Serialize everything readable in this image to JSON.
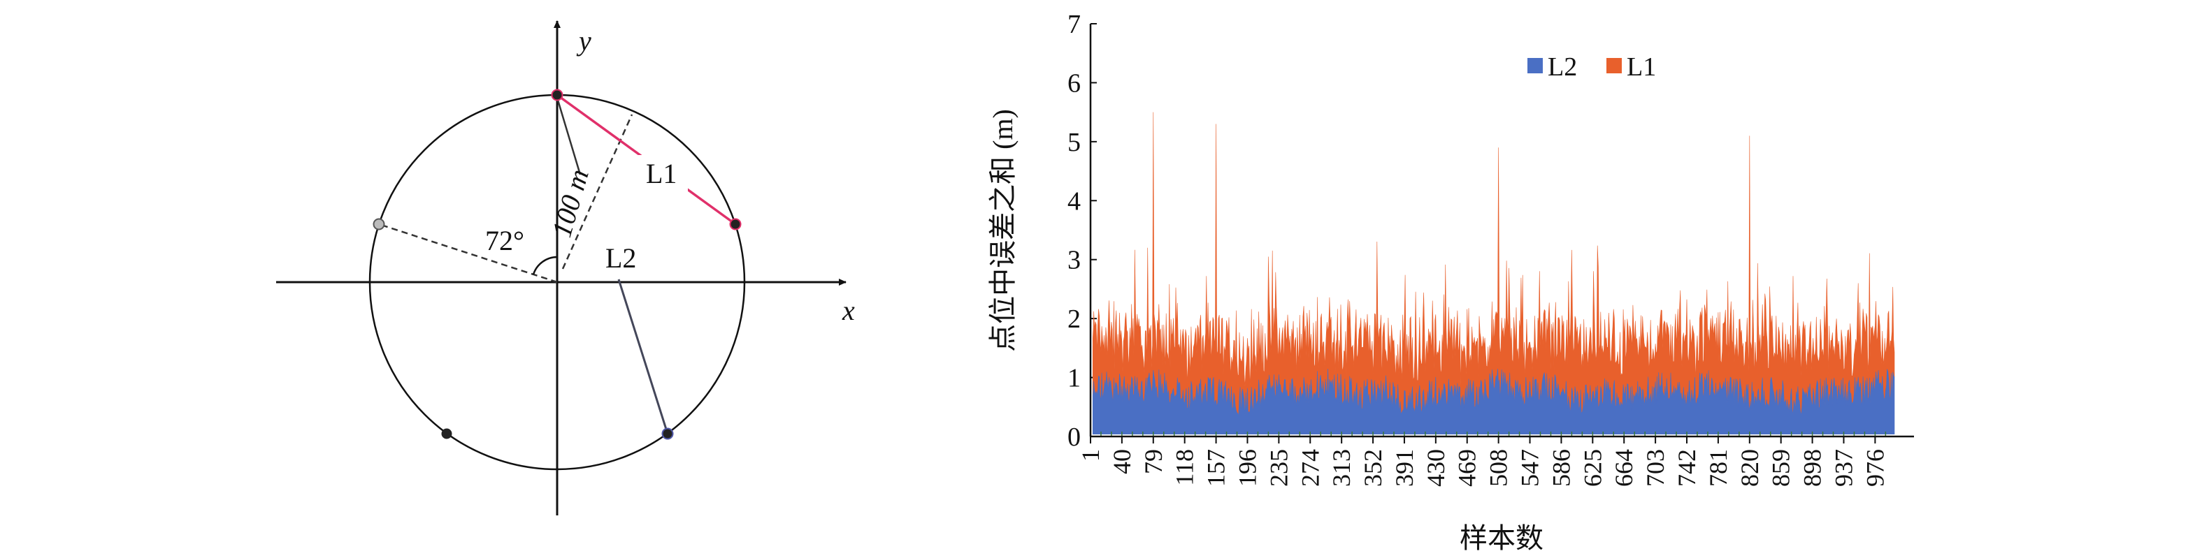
{
  "diagram": {
    "x_axis_label": "x",
    "y_axis_label": "y",
    "line1_label": "L1",
    "line2_label": "L2",
    "angle_label": "72°",
    "radius_label": "100 m",
    "colors": {
      "line1": "#e0306a",
      "line2": "#44475a",
      "point": "#222222",
      "dashed": "#333333"
    }
  },
  "chart_data": {
    "type": "area",
    "stacked": true,
    "x_start": 1,
    "x_end": 1000,
    "xlabel": "样本数",
    "ylabel": "点位中误差之和 (m)",
    "ylim": [
      0,
      7
    ],
    "yticks": [
      "0",
      "1",
      "2",
      "3",
      "4",
      "5",
      "6",
      "7"
    ],
    "xticks": [
      "1",
      "40",
      "79",
      "118",
      "157",
      "196",
      "235",
      "274",
      "313",
      "352",
      "391",
      "430",
      "469",
      "508",
      "547",
      "586",
      "625",
      "664",
      "703",
      "742",
      "781",
      "820",
      "859",
      "898",
      "937",
      "976"
    ],
    "legend_position": "top-center",
    "series": [
      {
        "name": "L2",
        "color": "#4a6fc4",
        "typical_value": 0.75
      },
      {
        "name": "L1",
        "color": "#e8602c",
        "typical_value": 0.85
      }
    ],
    "peaks_total": [
      {
        "x": 79,
        "y": 5.5
      },
      {
        "x": 157,
        "y": 5.3
      },
      {
        "x": 508,
        "y": 4.9
      },
      {
        "x": 820,
        "y": 5.1
      }
    ]
  }
}
